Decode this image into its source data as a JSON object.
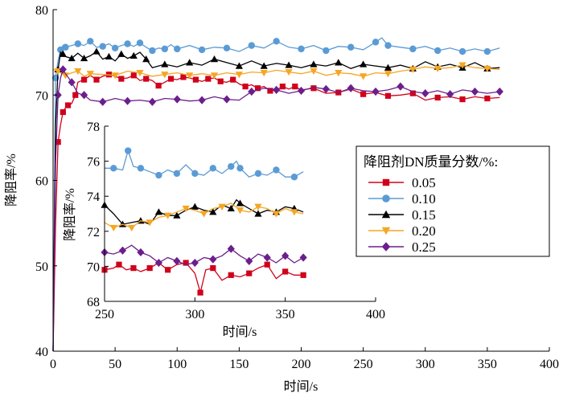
{
  "chart_data": [
    {
      "type": "line",
      "xlabel": "时间/s",
      "ylabel": "降阻率/%",
      "xlim": [
        0,
        400
      ],
      "ylim": [
        40,
        80
      ],
      "xticks": [
        "0",
        "50",
        "100",
        "150",
        "200",
        "250",
        "300",
        "350",
        "400"
      ],
      "yticks": [
        "40",
        "50",
        "60",
        "70",
        "80"
      ],
      "grid": false,
      "legend": {
        "title": "降阻剂DN质量分数/%:",
        "placement": "right",
        "entries": [
          "0.05",
          "0.10",
          "0.15",
          "0.20",
          "0.25"
        ]
      },
      "series": [
        {
          "name": "0.05",
          "color": "#d0021b",
          "marker": "square",
          "x": [
            0,
            2,
            4,
            6,
            8,
            10,
            12,
            15,
            18,
            20,
            25,
            30,
            35,
            40,
            45,
            50,
            55,
            60,
            65,
            70,
            75,
            80,
            85,
            90,
            95,
            100,
            105,
            110,
            115,
            120,
            125,
            130,
            135,
            140,
            145,
            150,
            155,
            160,
            165,
            170,
            175,
            180,
            185,
            190,
            195,
            200,
            210,
            220,
            230,
            240,
            250,
            260,
            270,
            280,
            290,
            300,
            310,
            320,
            330,
            340,
            350,
            360
          ],
          "y": [
            40,
            55,
            64.5,
            66.5,
            68,
            68.5,
            68.8,
            69,
            70,
            71.5,
            71.8,
            72.3,
            71.8,
            72.2,
            72.4,
            72.2,
            71.9,
            72,
            72.3,
            71.7,
            71.9,
            71.7,
            71.1,
            71.5,
            71.9,
            71.8,
            72.1,
            72,
            71.8,
            71.6,
            71.9,
            72,
            71.6,
            71.5,
            71.8,
            71.3,
            71,
            71.2,
            70.8,
            71,
            70.5,
            70.6,
            71,
            70.7,
            71,
            70.6,
            70.8,
            70.2,
            70.3,
            70.7,
            70.1,
            70.3,
            69.9,
            70,
            70.2,
            69.4,
            69.7,
            69.8,
            69.5,
            69.8,
            69.6,
            69.7
          ]
        },
        {
          "name": "0.10",
          "color": "#5b9bd5",
          "marker": "circle",
          "x": [
            0,
            2,
            4,
            6,
            8,
            10,
            15,
            20,
            25,
            30,
            35,
            40,
            45,
            50,
            55,
            60,
            65,
            70,
            75,
            80,
            85,
            90,
            95,
            100,
            110,
            120,
            130,
            140,
            150,
            160,
            170,
            180,
            190,
            200,
            210,
            220,
            230,
            240,
            250,
            260,
            265,
            270,
            280,
            290,
            300,
            310,
            320,
            330,
            340,
            350,
            360
          ],
          "y": [
            40,
            72,
            74,
            75.3,
            75.8,
            75.6,
            75.8,
            76,
            75.8,
            76.3,
            75.6,
            75.7,
            76,
            75.5,
            75.8,
            76,
            75.7,
            76.1,
            75.6,
            75.2,
            75.5,
            75.4,
            75.9,
            75.4,
            75.8,
            75.3,
            75.6,
            75.5,
            75.1,
            75.8,
            75.5,
            76.3,
            75.6,
            75.4,
            75.8,
            75.2,
            75.7,
            75.6,
            75.3,
            76.2,
            76.7,
            75.8,
            75.6,
            75.4,
            75.7,
            75.2,
            75.5,
            75.1,
            75.4,
            75.1,
            75.5
          ]
        },
        {
          "name": "0.15",
          "color": "#000000",
          "marker": "triangle",
          "x": [
            0,
            2,
            4,
            6,
            8,
            10,
            15,
            20,
            25,
            30,
            35,
            40,
            45,
            50,
            55,
            60,
            65,
            70,
            75,
            80,
            90,
            100,
            110,
            120,
            130,
            140,
            150,
            160,
            170,
            180,
            190,
            200,
            210,
            220,
            230,
            240,
            250,
            260,
            270,
            280,
            290,
            300,
            310,
            320,
            330,
            340,
            350,
            360
          ],
          "y": [
            40,
            66.5,
            73,
            75,
            74.8,
            74.5,
            74.3,
            74.9,
            74.3,
            74.6,
            75.1,
            74.2,
            74.5,
            74,
            74.8,
            74.3,
            74.6,
            75,
            74.2,
            73.2,
            73.6,
            73.3,
            73.8,
            73.5,
            74.2,
            73.8,
            73.4,
            74,
            73.4,
            73.7,
            73.5,
            73.2,
            73.6,
            73.4,
            73.8,
            73.1,
            73.6,
            73.4,
            73.2,
            73.5,
            73.1,
            73.9,
            73.3,
            73.6,
            73.2,
            73.8,
            73.1,
            73.2
          ]
        },
        {
          "name": "0.20",
          "color": "#f5a623",
          "marker": "triangle-down",
          "x": [
            0,
            4,
            8,
            10,
            15,
            20,
            25,
            30,
            40,
            50,
            60,
            70,
            80,
            90,
            100,
            110,
            120,
            130,
            140,
            150,
            160,
            170,
            180,
            190,
            200,
            210,
            220,
            230,
            240,
            250,
            260,
            270,
            280,
            290,
            300,
            310,
            320,
            330,
            340,
            350,
            360
          ],
          "y": [
            73,
            72.8,
            72.4,
            72.3,
            72.6,
            72.8,
            72.2,
            72.5,
            72.4,
            72.3,
            72.8,
            72.6,
            72.2,
            72.4,
            72.6,
            72.3,
            72.5,
            72.3,
            72.6,
            72.4,
            72.7,
            72.6,
            72.9,
            72.7,
            72.5,
            72.8,
            72.3,
            72.6,
            72.5,
            72.2,
            72.6,
            72.5,
            72.8,
            73,
            73.3,
            73.1,
            73.2,
            73.5,
            73.2,
            73.1,
            73
          ]
        },
        {
          "name": "0.25",
          "color": "#6b1e8c",
          "marker": "diamond",
          "x": [
            0,
            2,
            4,
            6,
            8,
            10,
            15,
            20,
            25,
            30,
            40,
            50,
            60,
            70,
            80,
            90,
            100,
            110,
            120,
            130,
            140,
            150,
            160,
            170,
            180,
            190,
            200,
            210,
            220,
            230,
            240,
            250,
            260,
            270,
            280,
            290,
            300,
            310,
            320,
            330,
            340,
            350,
            360
          ],
          "y": [
            40,
            62,
            70,
            72,
            73,
            72.5,
            71.5,
            70.2,
            70,
            69.4,
            69.2,
            69.6,
            69.3,
            69.4,
            69.2,
            69.6,
            69.5,
            69.3,
            69.4,
            69.8,
            69.5,
            69.4,
            70.4,
            70.8,
            70.6,
            70.2,
            70.5,
            70.9,
            70.7,
            70.3,
            70.8,
            70.5,
            70.4,
            70.6,
            71,
            70.4,
            70.2,
            70.5,
            70.1,
            70.6,
            70.4,
            70.2,
            70.4
          ]
        }
      ]
    },
    {
      "type": "line",
      "role": "inset",
      "xlabel": "时间/s",
      "ylabel": "降阻率/%",
      "xlim": [
        250,
        400
      ],
      "ylim": [
        68,
        78
      ],
      "xticks": [
        "250",
        "300",
        "350",
        "400"
      ],
      "yticks": [
        "68",
        "70",
        "72",
        "74",
        "76",
        "78"
      ],
      "grid": false,
      "series": [
        {
          "name": "0.05",
          "color": "#d0021b",
          "marker": "square",
          "x": [
            250,
            255,
            258,
            262,
            266,
            270,
            275,
            280,
            285,
            290,
            295,
            300,
            303,
            306,
            310,
            315,
            320,
            325,
            330,
            335,
            340,
            345,
            350,
            355,
            360
          ],
          "y": [
            69.8,
            69.9,
            70.1,
            69.8,
            69.9,
            69.7,
            69.9,
            70.2,
            69.8,
            70.1,
            70.2,
            69.6,
            68.5,
            69.8,
            69.9,
            69.2,
            69.5,
            69.4,
            69.6,
            69.9,
            70.1,
            69.3,
            69.7,
            69.5,
            69.5
          ]
        },
        {
          "name": "0.10",
          "color": "#5b9bd5",
          "marker": "circle",
          "x": [
            250,
            255,
            260,
            263,
            266,
            270,
            275,
            280,
            285,
            290,
            295,
            300,
            305,
            310,
            315,
            320,
            323,
            325,
            330,
            335,
            340,
            345,
            350,
            355,
            360
          ],
          "y": [
            75.6,
            75.6,
            75.5,
            76.6,
            75.7,
            75.6,
            75.4,
            75.2,
            75.5,
            75.3,
            75.8,
            75.3,
            75.2,
            75.6,
            75.3,
            75.7,
            76,
            75.6,
            75.1,
            75.3,
            75.2,
            75.5,
            75.1,
            75.1,
            75.4
          ]
        },
        {
          "name": "0.15",
          "color": "#000000",
          "marker": "triangle",
          "x": [
            250,
            255,
            260,
            265,
            270,
            275,
            280,
            285,
            290,
            295,
            300,
            305,
            310,
            315,
            320,
            323,
            325,
            330,
            335,
            340,
            345,
            350,
            355,
            360
          ],
          "y": [
            73.5,
            73,
            72.4,
            72.5,
            72.6,
            72.4,
            73.1,
            72.9,
            72.9,
            73.2,
            73.4,
            73.2,
            73.1,
            73.5,
            73.3,
            73.8,
            73.6,
            73.3,
            73,
            73.2,
            73.1,
            73.4,
            73.3,
            73.1
          ]
        },
        {
          "name": "0.20",
          "color": "#f5a623",
          "marker": "triangle-down",
          "x": [
            250,
            255,
            260,
            265,
            270,
            275,
            280,
            285,
            290,
            295,
            300,
            305,
            310,
            315,
            320,
            325,
            330,
            335,
            340,
            345,
            350,
            355,
            360
          ],
          "y": [
            72.5,
            72.2,
            72.4,
            72.2,
            72.6,
            72.5,
            72.8,
            72.9,
            73.1,
            73.3,
            73.2,
            73,
            73.3,
            73.4,
            73.6,
            73.2,
            73.1,
            73.4,
            73.3,
            73,
            73.3,
            73.1,
            73
          ]
        },
        {
          "name": "0.25",
          "color": "#6b1e8c",
          "marker": "diamond",
          "x": [
            250,
            255,
            260,
            265,
            270,
            275,
            280,
            285,
            290,
            295,
            300,
            305,
            310,
            315,
            320,
            325,
            330,
            335,
            340,
            345,
            350,
            355,
            360
          ],
          "y": [
            70.8,
            70.7,
            70.9,
            71.2,
            70.8,
            70.6,
            70.2,
            70.5,
            70.3,
            70.1,
            70.2,
            70.5,
            70.4,
            70.6,
            71,
            70.6,
            70.3,
            70.7,
            70.5,
            70.2,
            70.6,
            70.2,
            70.5
          ]
        }
      ]
    }
  ]
}
